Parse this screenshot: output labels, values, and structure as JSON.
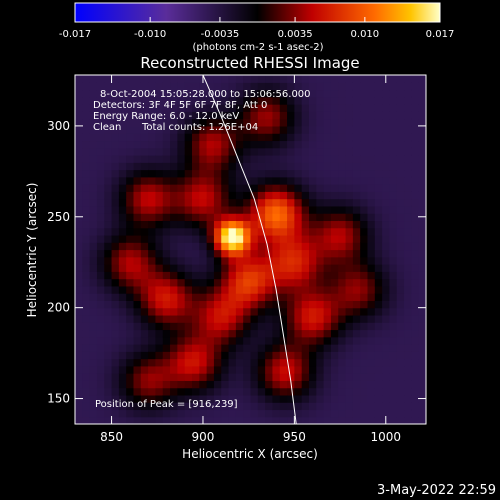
{
  "chart_data": {
    "type": "heatmap",
    "title": "Reconstructed RHESSI Image",
    "xlabel": "Heliocentric X (arcsec)",
    "ylabel": "Heliocentric Y (arcsec)",
    "xlim": [
      830,
      1022
    ],
    "ylim": [
      136,
      328
    ],
    "x_ticks": [
      850,
      900,
      950,
      1000
    ],
    "y_ticks": [
      150,
      200,
      250,
      300
    ],
    "colorbar": {
      "range": [
        -0.017,
        0.017
      ],
      "ticks": [
        "-0.017",
        "-0.010",
        "-0.0035",
        "0.0035",
        "0.010",
        "0.017"
      ],
      "label": "(photons cm-2 s-1 asec-2)"
    },
    "annotations": [
      "8-Oct-2004 15:05:28.000 to 15:06:56.000",
      "Detectors: 3F 4F 5F 6F 7F 8F, Att 0",
      "Energy Range: 6.0 - 12.0 keV",
      "Clean",
      "Total counts: 1.26E+04"
    ],
    "peak_label": "Position of Peak = [916,239]",
    "peak": {
      "x": 916,
      "y": 239,
      "value": 0.017
    },
    "secondary_sources": [
      {
        "x": 940,
        "y": 252,
        "value": 0.0105
      },
      {
        "x": 925,
        "y": 215,
        "value": 0.0075
      },
      {
        "x": 880,
        "y": 205,
        "value": 0.006
      },
      {
        "x": 960,
        "y": 195,
        "value": 0.006
      },
      {
        "x": 895,
        "y": 170,
        "value": 0.0055
      },
      {
        "x": 945,
        "y": 165,
        "value": 0.0055
      },
      {
        "x": 870,
        "y": 260,
        "value": 0.005
      },
      {
        "x": 975,
        "y": 240,
        "value": 0.0045
      },
      {
        "x": 905,
        "y": 290,
        "value": 0.0045
      },
      {
        "x": 935,
        "y": 305,
        "value": 0.004
      },
      {
        "x": 985,
        "y": 210,
        "value": 0.0035
      },
      {
        "x": 860,
        "y": 225,
        "value": 0.0045
      },
      {
        "x": 950,
        "y": 225,
        "value": 0.006
      },
      {
        "x": 910,
        "y": 195,
        "value": 0.005
      },
      {
        "x": 870,
        "y": 160,
        "value": 0.0035
      },
      {
        "x": 900,
        "y": 260,
        "value": 0.005
      }
    ],
    "limb": [
      {
        "x": 900,
        "y": 328
      },
      {
        "x": 910,
        "y": 305
      },
      {
        "x": 920,
        "y": 280
      },
      {
        "x": 928,
        "y": 260
      },
      {
        "x": 935,
        "y": 235
      },
      {
        "x": 940,
        "y": 210
      },
      {
        "x": 944,
        "y": 185
      },
      {
        "x": 948,
        "y": 160
      },
      {
        "x": 951,
        "y": 136
      }
    ]
  },
  "footer": {
    "date": "3-May-2022 22:59"
  }
}
